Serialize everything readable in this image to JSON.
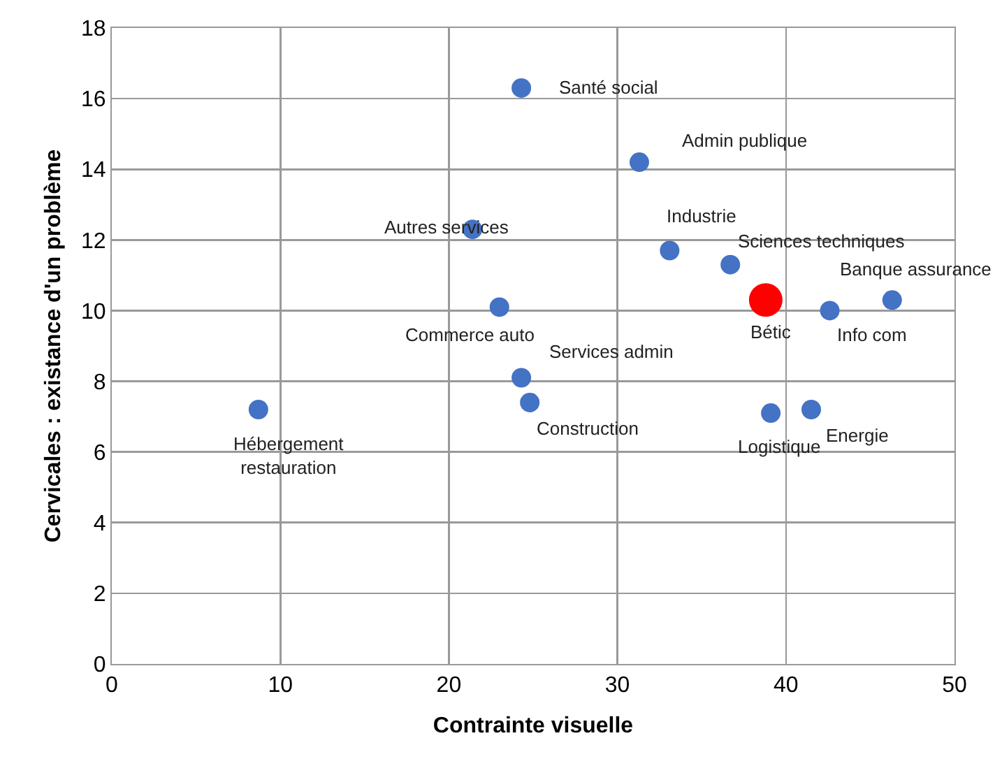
{
  "chart_data": {
    "type": "scatter",
    "xlabel": "Contrainte visuelle",
    "ylabel": "Cervicales : existance d'un problème",
    "xlim": [
      0,
      50
    ],
    "xticks": [
      0,
      10,
      20,
      30,
      40,
      50
    ],
    "ylim": [
      0,
      18
    ],
    "yticks": [
      0,
      2,
      4,
      6,
      8,
      10,
      12,
      14,
      16,
      18
    ],
    "grid": true,
    "marker": "circle",
    "series": [
      {
        "color": "#4472c4",
        "x": [
          24.3,
          31.3,
          21.4,
          33.1,
          36.7,
          46.3,
          42.6,
          23.0,
          24.3,
          24.8,
          8.7,
          39.1,
          41.5
        ],
        "values": [
          16.3,
          14.2,
          12.3,
          11.7,
          11.3,
          10.3,
          10.0,
          10.1,
          8.1,
          7.4,
          7.2,
          7.1,
          7.2
        ]
      },
      {
        "color": "#ff0000",
        "x": [
          38.8
        ],
        "values": [
          10.3
        ]
      }
    ],
    "annotations": [
      {
        "text": "Santé social",
        "x": 24.3,
        "y": 16.3
      },
      {
        "text": "Admin publique",
        "x": 31.3,
        "y": 14.2
      },
      {
        "text": "Autres services",
        "x": 21.4,
        "y": 12.3
      },
      {
        "text": "Industrie",
        "x": 33.1,
        "y": 11.7
      },
      {
        "text": "Sciences techniques",
        "x": 36.7,
        "y": 11.3
      },
      {
        "text": "Banque assurance",
        "x": 46.3,
        "y": 10.3
      },
      {
        "text": "Info com",
        "x": 42.6,
        "y": 10.0
      },
      {
        "text": "Commerce auto",
        "x": 23.0,
        "y": 10.1
      },
      {
        "text": "Services admin",
        "x": 24.3,
        "y": 8.1
      },
      {
        "text": "Construction",
        "x": 24.8,
        "y": 7.4
      },
      {
        "text": "Hébergement\nrestauration",
        "x": 8.7,
        "y": 7.2
      },
      {
        "text": "Logistique",
        "x": 39.1,
        "y": 7.1
      },
      {
        "text": "Energie",
        "x": 41.5,
        "y": 7.2
      },
      {
        "text": "Bétic",
        "x": 38.8,
        "y": 10.3
      }
    ]
  }
}
